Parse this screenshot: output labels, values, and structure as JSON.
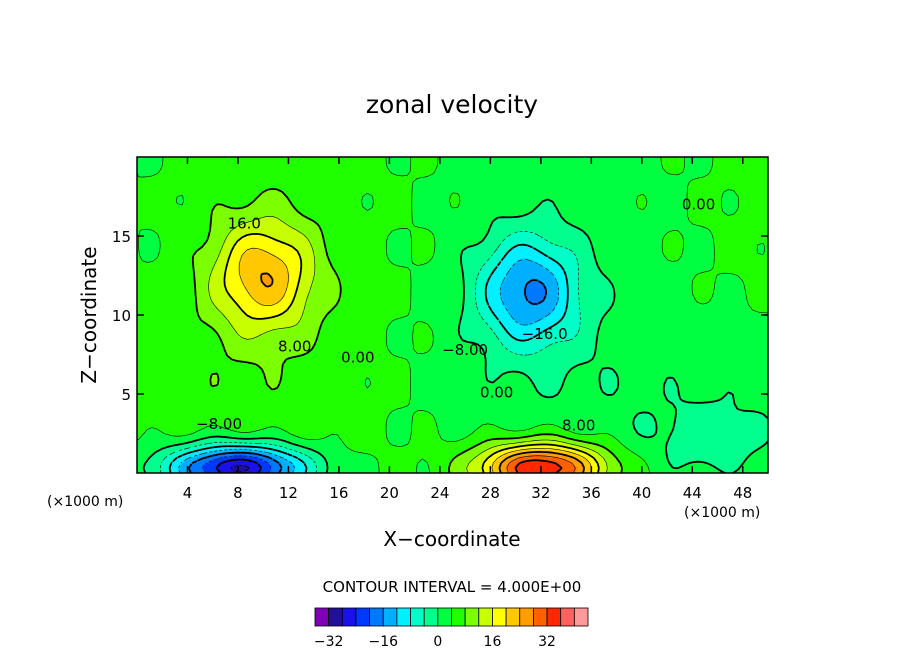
{
  "chart_data": {
    "type": "heatmap",
    "title": "zonal velocity",
    "xlabel": "X−coordinate",
    "ylabel": "Z−coordinate",
    "x_unit_label": "(×1000 m)",
    "y_unit_label": "(×1000 m)",
    "xlim": [
      0,
      50
    ],
    "ylim": [
      0,
      20
    ],
    "x_ticks": [
      "4",
      "8",
      "12",
      "16",
      "20",
      "24",
      "28",
      "32",
      "36",
      "40",
      "44",
      "48"
    ],
    "y_ticks": [
      "5",
      "10",
      "15"
    ],
    "contour_interval_text": "CONTOUR INTERVAL = 4.000E+00",
    "contour_labels": [
      {
        "text": "16.0",
        "x": 8.5,
        "y": 15.8
      },
      {
        "text": "8.00",
        "x": 12.5,
        "y": 8.0
      },
      {
        "text": "0.00",
        "x": 17.5,
        "y": 7.3
      },
      {
        "text": "0.00",
        "x": 44.5,
        "y": 17.0
      },
      {
        "text": "−8.00",
        "x": 26.0,
        "y": 7.8
      },
      {
        "text": "−16.0",
        "x": 32.3,
        "y": 8.8
      },
      {
        "text": "0.00",
        "x": 28.5,
        "y": 5.1
      },
      {
        "text": "8.00",
        "x": 35.0,
        "y": 3.0
      },
      {
        "text": "−8.00",
        "x": 6.5,
        "y": 3.1
      }
    ],
    "field_features": [
      {
        "x": 10,
        "y": 12.5,
        "amp": 18,
        "sx": 4,
        "sy": 3.5
      },
      {
        "x": 31,
        "y": 11.5,
        "amp": -19,
        "sx": 4,
        "sy": 3.5
      },
      {
        "x": 8,
        "y": 0.3,
        "amp": -34,
        "sx": 5.5,
        "sy": 1.5
      },
      {
        "x": 32,
        "y": 0.3,
        "amp": 34,
        "sx": 5,
        "sy": 1.6
      },
      {
        "x": 46,
        "y": 2,
        "amp": -6,
        "sx": 5,
        "sy": 2.5
      }
    ],
    "colorbar": {
      "ticks": [
        "−32",
        "−16",
        "0",
        "16",
        "32"
      ],
      "tick_values": [
        -32,
        -16,
        0,
        16,
        32
      ],
      "bins": [
        -36,
        -32,
        -28,
        -24,
        -20,
        -16,
        -12,
        -8,
        -4,
        0,
        4,
        8,
        12,
        16,
        20,
        24,
        28,
        32,
        36,
        40
      ],
      "colors": [
        "#7e00b8",
        "#20109a",
        "#1a10e8",
        "#0038ff",
        "#0078ff",
        "#00b0ff",
        "#00f0ff",
        "#00ffc8",
        "#00ff8c",
        "#00ff40",
        "#20ff00",
        "#7cff00",
        "#c8ff00",
        "#ffff00",
        "#ffc800",
        "#ff9c00",
        "#ff6000",
        "#ff2800",
        "#ff6060",
        "#ff9a9a"
      ]
    },
    "grid": false,
    "legend": "none"
  }
}
